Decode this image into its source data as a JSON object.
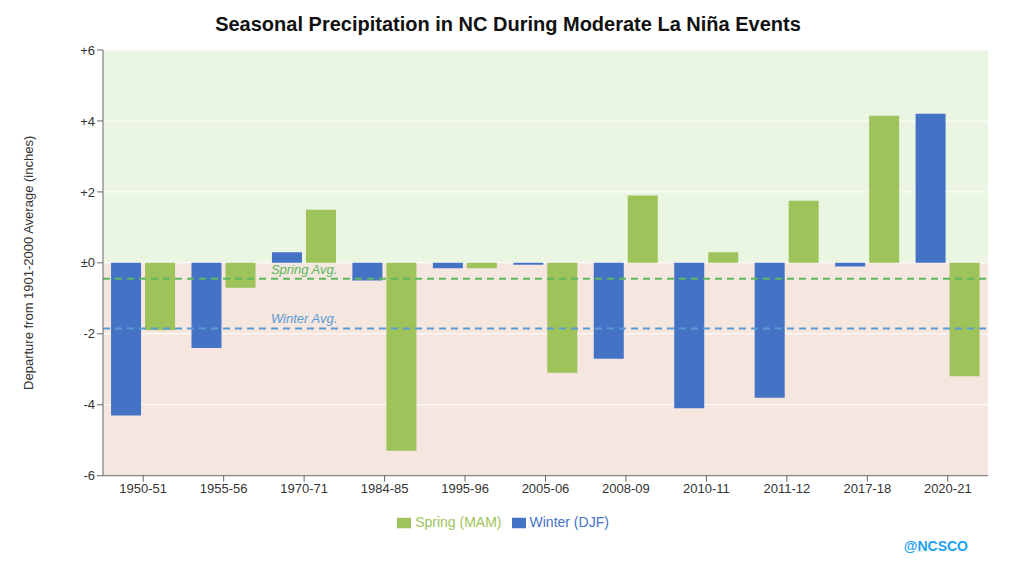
{
  "chart_data": {
    "type": "bar",
    "title": "Seasonal Precipitation in NC During Moderate La Niña Events",
    "ylabel": "Departure from 1901-2000 Average (inches)",
    "categories": [
      "1950-51",
      "1955-56",
      "1970-71",
      "1984-85",
      "1995-96",
      "2005-06",
      "2008-09",
      "2010-11",
      "2011-12",
      "2017-18",
      "2020-21"
    ],
    "series": [
      {
        "name": "Winter (DJF)",
        "color": "#4472C4",
        "values": [
          -4.3,
          -2.4,
          0.3,
          -0.5,
          -0.15,
          -0.05,
          -2.7,
          -4.1,
          -3.8,
          -0.1,
          4.2
        ]
      },
      {
        "name": "Spring (MAM)",
        "color": "#9DC35A",
        "values": [
          -1.9,
          -0.7,
          1.5,
          -5.3,
          -0.15,
          -3.1,
          1.9,
          0.3,
          1.75,
          4.15,
          -3.2
        ]
      }
    ],
    "ylim": [
      -6,
      6
    ],
    "yticks": [
      -6,
      -4,
      -2,
      {
        "value": 0,
        "label": "±0"
      },
      {
        "value": 2,
        "label": "+2"
      },
      {
        "value": 4,
        "label": "+4"
      },
      {
        "value": 6,
        "label": "+6"
      }
    ],
    "grid": true,
    "legend": "bottom",
    "reference_lines": [
      {
        "label": "Spring Avg.",
        "value": -0.45,
        "color": "#5CB85C"
      },
      {
        "label": "Winter Avg.",
        "value": -1.85,
        "color": "#5B9BD5"
      }
    ],
    "background_colors": {
      "above_zero": "#eaf5e2",
      "below_zero": "#f5e6e0"
    },
    "annotations": [
      {
        "text": "@NCSCO",
        "color": "#1DA1F2"
      }
    ]
  }
}
